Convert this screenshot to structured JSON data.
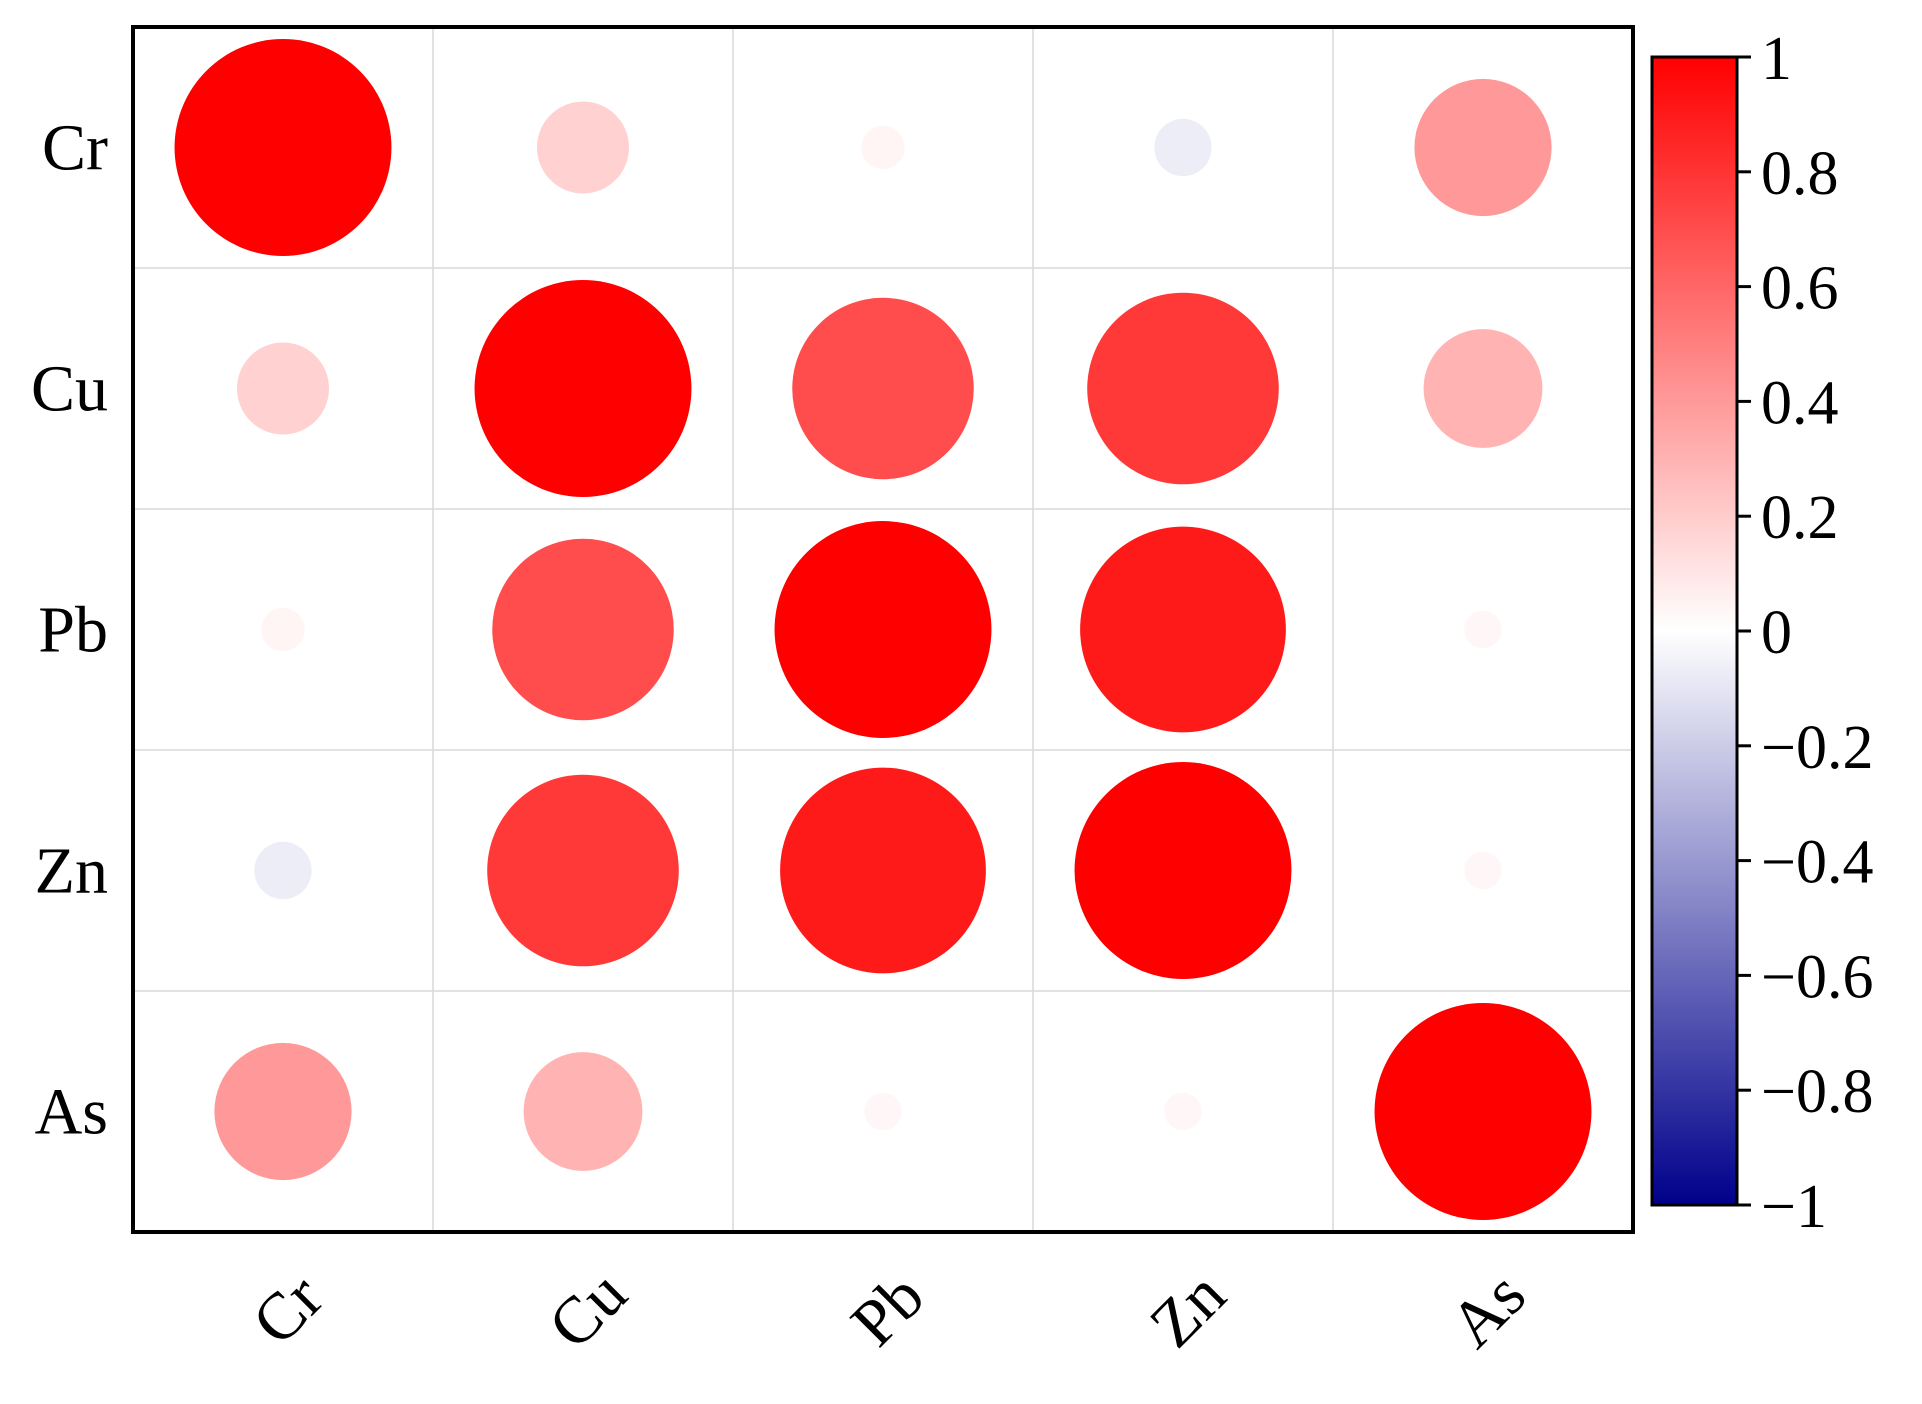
{
  "chart_data": {
    "type": "heatmap",
    "subtype": "correlation-circle-matrix",
    "rows": [
      "Cr",
      "Cu",
      "Pb",
      "Zn",
      "As"
    ],
    "columns": [
      "Cr",
      "Cu",
      "Pb",
      "Zn",
      "As"
    ],
    "values": [
      [
        1.0,
        0.18,
        0.04,
        -0.07,
        0.4
      ],
      [
        0.18,
        1.0,
        0.7,
        0.78,
        0.3
      ],
      [
        0.04,
        0.7,
        1.0,
        0.9,
        0.03
      ],
      [
        -0.07,
        0.78,
        0.9,
        1.0,
        0.03
      ],
      [
        0.4,
        0.3,
        0.03,
        0.03,
        1.0
      ]
    ],
    "title": "",
    "xlabel": "",
    "ylabel": "",
    "x_tick_rotation_deg": -45,
    "grid": true,
    "colorbar": {
      "position": "right",
      "range": [
        -1,
        1
      ],
      "ticks": [
        "1",
        "0.8",
        "0.6",
        "0.4",
        "0.2",
        "0",
        "−0.2",
        "−0.4",
        "−0.6",
        "−0.8",
        "−1"
      ],
      "tick_values": [
        1,
        0.8,
        0.6,
        0.4,
        0.2,
        0,
        -0.2,
        -0.4,
        -0.6,
        -0.8,
        -1
      ],
      "colors": {
        "low": "#00008b",
        "mid": "#ffffff",
        "high": "#ff0000"
      }
    }
  }
}
